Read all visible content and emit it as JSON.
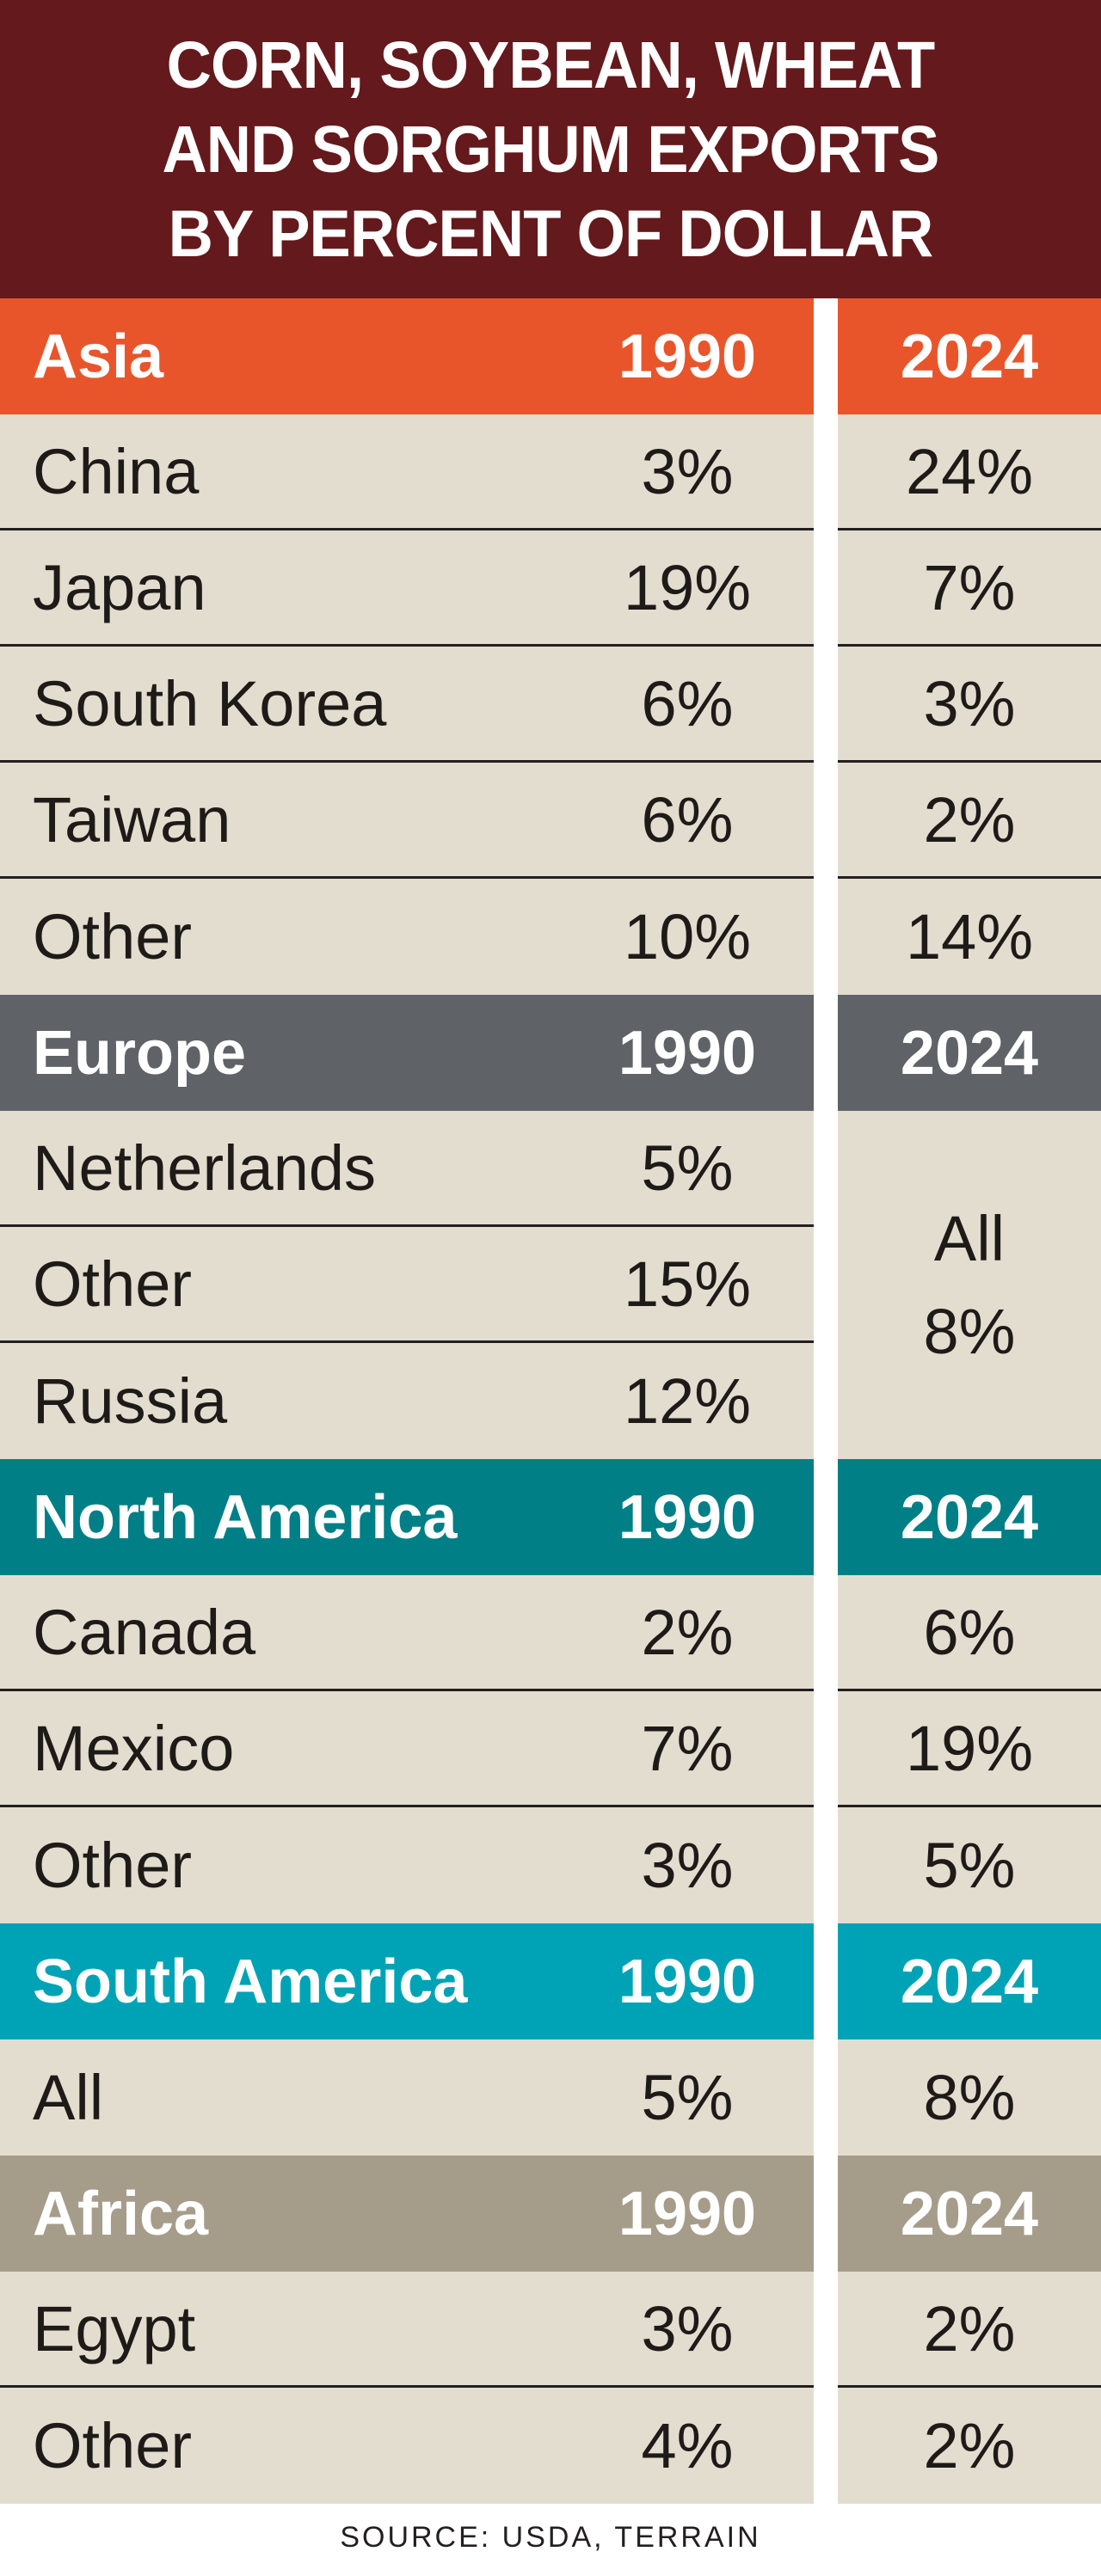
{
  "chart_data": {
    "type": "table",
    "title": "CORN, SOYBEAN, WHEAT\nAND SORGHUM EXPORTS\nBY PERCENT OF DOLLAR",
    "source": "SOURCE: USDA, TERRAIN",
    "columns": [
      "1990",
      "2024"
    ],
    "sections": [
      {
        "region": "Asia",
        "color": "#e9552b",
        "col1": "1990",
        "col2": "2024",
        "rows": [
          {
            "country": "China",
            "v1990": "3%",
            "v2024": "24%"
          },
          {
            "country": "Japan",
            "v1990": "19%",
            "v2024": "7%"
          },
          {
            "country": "South Korea",
            "v1990": "6%",
            "v2024": "3%"
          },
          {
            "country": "Taiwan",
            "v1990": "6%",
            "v2024": "2%"
          },
          {
            "country": "Other",
            "v1990": "10%",
            "v2024": "14%"
          }
        ]
      },
      {
        "region": "Europe",
        "color": "#5f6266",
        "col1": "1990",
        "col2": "2024",
        "rows": [
          {
            "country": "Netherlands",
            "v1990": "5%"
          },
          {
            "country": "Other",
            "v1990": "15%"
          },
          {
            "country": "Russia",
            "v1990": "12%"
          }
        ],
        "v2024_merged": [
          "All",
          "8%"
        ]
      },
      {
        "region": "North America",
        "color": "#007f86",
        "col1": "1990",
        "col2": "2024",
        "rows": [
          {
            "country": "Canada",
            "v1990": "2%",
            "v2024": "6%"
          },
          {
            "country": "Mexico",
            "v1990": "7%",
            "v2024": "19%"
          },
          {
            "country": "Other",
            "v1990": "3%",
            "v2024": "5%"
          }
        ]
      },
      {
        "region": "South America",
        "color": "#00a3b5",
        "col1": "1990",
        "col2": "2024",
        "rows": [
          {
            "country": "All",
            "v1990": "5%",
            "v2024": "8%"
          }
        ]
      },
      {
        "region": "Africa",
        "color": "#a59d8a",
        "col1": "1990",
        "col2": "2024",
        "rows": [
          {
            "country": "Egypt",
            "v1990": "3%",
            "v2024": "2%"
          },
          {
            "country": "Other",
            "v1990": "4%",
            "v2024": "2%"
          }
        ]
      }
    ]
  },
  "colors": {
    "title_background": "#64191c",
    "row_background": "#e2ddcf",
    "divider": "#231f20"
  }
}
